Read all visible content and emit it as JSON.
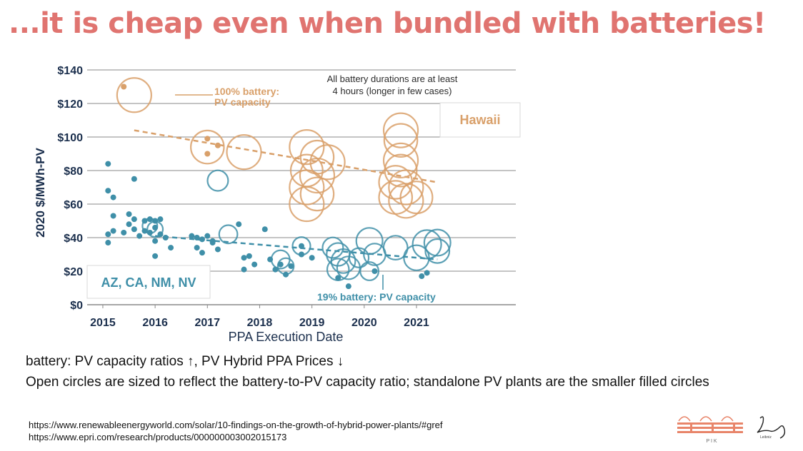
{
  "slide": {
    "title": "...it is cheap even when bundled with batteries!",
    "caption_line1": "battery: PV capacity ratios ↑, PV Hybrid PPA Prices ↓",
    "caption_line2": "Open circles are sized to reflect the battery-to-PV capacity ratio; standalone PV plants are the smaller filled circles",
    "source_1": "https://www.renewableenergyworld.com/solar/10-findings-on-the-growth-of-hybrid-power-plants/#gref",
    "source_2": "https://www.epri.com/research/products/000000003002015173",
    "logo_pik_text": "P I K",
    "logo_leibniz_text": "Leibniz"
  },
  "colors": {
    "title": "#e07470",
    "hawaii": "#d9a06a",
    "mainland": "#3f8fa8",
    "grid": "#8a8a8a"
  },
  "chart_data": {
    "type": "scatter",
    "xlabel": "PPA Execution Date",
    "ylabel": "2020 $/MWh-PV",
    "xlim": [
      2014.7,
      2022.9
    ],
    "ylim": [
      0,
      140
    ],
    "x_ticks": [
      "2015",
      "2016",
      "2017",
      "2018",
      "2019",
      "2020",
      "2021"
    ],
    "y_ticks": [
      "$0",
      "$20",
      "$40",
      "$60",
      "$80",
      "$100",
      "$120",
      "$140"
    ],
    "grid": true,
    "annotations": {
      "battery_duration_line1": "All battery durations are at least",
      "battery_duration_line2": "4 hours (longer in few cases)",
      "hawaii_100pct_line1": "100% battery:",
      "hawaii_100pct_line2": "PV capacity",
      "mainland_19pct": "19% battery: PV capacity"
    },
    "region_labels": {
      "hawaii": "Hawaii",
      "mainland": "AZ, CA, NM, NV"
    },
    "series": [
      {
        "name": "Hawaii",
        "filled": [
          [
            2015.4,
            130
          ],
          [
            2017.0,
            99
          ],
          [
            2017.0,
            90
          ],
          [
            2017.2,
            95
          ]
        ],
        "hybrid": [
          {
            "x": 2015.6,
            "y": 125,
            "ratio": 1.0
          },
          {
            "x": 2017.0,
            "y": 94,
            "ratio": 0.95
          },
          {
            "x": 2017.7,
            "y": 91,
            "ratio": 1.0
          },
          {
            "x": 2018.9,
            "y": 94,
            "ratio": 1.0
          },
          {
            "x": 2019.1,
            "y": 88,
            "ratio": 0.95
          },
          {
            "x": 2019.3,
            "y": 85,
            "ratio": 1.0
          },
          {
            "x": 2018.9,
            "y": 80,
            "ratio": 0.9
          },
          {
            "x": 2019.1,
            "y": 77,
            "ratio": 1.0
          },
          {
            "x": 2018.9,
            "y": 70,
            "ratio": 1.0
          },
          {
            "x": 2019.1,
            "y": 66,
            "ratio": 0.95
          },
          {
            "x": 2018.9,
            "y": 60,
            "ratio": 1.0
          },
          {
            "x": 2020.7,
            "y": 104,
            "ratio": 1.0
          },
          {
            "x": 2020.7,
            "y": 98,
            "ratio": 0.95
          },
          {
            "x": 2020.7,
            "y": 86,
            "ratio": 1.0
          },
          {
            "x": 2020.7,
            "y": 80,
            "ratio": 0.9
          },
          {
            "x": 2020.6,
            "y": 73,
            "ratio": 0.95
          },
          {
            "x": 2020.8,
            "y": 70,
            "ratio": 1.0
          },
          {
            "x": 2020.6,
            "y": 64,
            "ratio": 0.95
          },
          {
            "x": 2020.8,
            "y": 62,
            "ratio": 1.0
          },
          {
            "x": 2021.0,
            "y": 64,
            "ratio": 0.9
          }
        ],
        "trend": [
          [
            2015.6,
            104
          ],
          [
            2021.4,
            73
          ]
        ]
      },
      {
        "name": "AZ, CA, NM, NV",
        "filled": [
          [
            2015.1,
            84
          ],
          [
            2015.1,
            68
          ],
          [
            2015.2,
            64
          ],
          [
            2015.6,
            75
          ],
          [
            2015.2,
            53
          ],
          [
            2015.5,
            54
          ],
          [
            2015.6,
            51
          ],
          [
            2015.8,
            50
          ],
          [
            2015.9,
            51
          ],
          [
            2016.0,
            50
          ],
          [
            2016.1,
            51
          ],
          [
            2015.1,
            42
          ],
          [
            2015.1,
            37
          ],
          [
            2015.2,
            44
          ],
          [
            2015.4,
            43
          ],
          [
            2015.5,
            48
          ],
          [
            2015.6,
            45
          ],
          [
            2015.7,
            41
          ],
          [
            2015.8,
            44
          ],
          [
            2015.9,
            43
          ],
          [
            2016.0,
            46
          ],
          [
            2016.1,
            42
          ],
          [
            2016.2,
            40
          ],
          [
            2016.0,
            38
          ],
          [
            2016.0,
            29
          ],
          [
            2016.3,
            34
          ],
          [
            2016.7,
            41
          ],
          [
            2016.8,
            40
          ],
          [
            2016.9,
            39
          ],
          [
            2017.0,
            41
          ],
          [
            2017.1,
            38
          ],
          [
            2016.8,
            34
          ],
          [
            2016.9,
            31
          ],
          [
            2017.1,
            37
          ],
          [
            2017.2,
            33
          ],
          [
            2017.6,
            48
          ],
          [
            2017.7,
            28
          ],
          [
            2017.8,
            29
          ],
          [
            2017.7,
            21
          ],
          [
            2017.9,
            24
          ],
          [
            2018.1,
            45
          ],
          [
            2018.2,
            27
          ],
          [
            2018.3,
            21
          ],
          [
            2018.4,
            24
          ],
          [
            2018.5,
            18
          ],
          [
            2018.6,
            23
          ],
          [
            2018.8,
            35
          ],
          [
            2018.8,
            30
          ],
          [
            2019.0,
            28
          ],
          [
            2019.5,
            16
          ],
          [
            2019.7,
            11
          ],
          [
            2020.2,
            20
          ],
          [
            2021.1,
            17
          ],
          [
            2021.2,
            19
          ]
        ],
        "hybrid": [
          {
            "x": 2015.9,
            "y": 47,
            "ratio": 0.15
          },
          {
            "x": 2016.0,
            "y": 45,
            "ratio": 0.18
          },
          {
            "x": 2017.2,
            "y": 74,
            "ratio": 0.4
          },
          {
            "x": 2017.4,
            "y": 42,
            "ratio": 0.3
          },
          {
            "x": 2018.4,
            "y": 27,
            "ratio": 0.3
          },
          {
            "x": 2018.5,
            "y": 23,
            "ratio": 0.2
          },
          {
            "x": 2018.8,
            "y": 35,
            "ratio": 0.28
          },
          {
            "x": 2019.4,
            "y": 34,
            "ratio": 0.4
          },
          {
            "x": 2019.5,
            "y": 30,
            "ratio": 0.5
          },
          {
            "x": 2019.6,
            "y": 26,
            "ratio": 0.55
          },
          {
            "x": 2019.5,
            "y": 21,
            "ratio": 0.45
          },
          {
            "x": 2019.7,
            "y": 22,
            "ratio": 0.5
          },
          {
            "x": 2019.9,
            "y": 28,
            "ratio": 0.35
          },
          {
            "x": 2020.1,
            "y": 20,
            "ratio": 0.3
          },
          {
            "x": 2020.2,
            "y": 30,
            "ratio": 0.45
          },
          {
            "x": 2020.1,
            "y": 38,
            "ratio": 0.65
          },
          {
            "x": 2020.6,
            "y": 34,
            "ratio": 0.55
          },
          {
            "x": 2021.0,
            "y": 28,
            "ratio": 0.6
          },
          {
            "x": 2021.2,
            "y": 36,
            "ratio": 0.75
          },
          {
            "x": 2021.4,
            "y": 37,
            "ratio": 0.65
          },
          {
            "x": 2021.4,
            "y": 32,
            "ratio": 0.55
          }
        ],
        "trend": [
          [
            2016.0,
            41
          ],
          [
            2021.4,
            27
          ]
        ]
      }
    ]
  }
}
